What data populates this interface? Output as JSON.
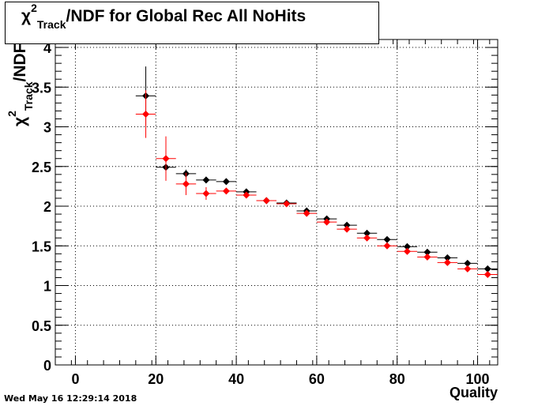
{
  "chart_data": {
    "type": "scatter",
    "title_symbol": "χ",
    "title_sup": "2",
    "title_sub": "Track",
    "title_rest": "/NDF for Global Rec All NoHits",
    "xlabel": "Quality",
    "ylabel_symbol": "χ",
    "ylabel_sup": "2",
    "ylabel_sub": "Track",
    "ylabel_rest": "/NDF",
    "xlim": [
      -5,
      105
    ],
    "ylim": [
      0,
      4.1
    ],
    "x_ticks": [
      "0",
      "20",
      "40",
      "60",
      "80",
      "100"
    ],
    "y_ticks": [
      "0",
      "0.5",
      "1",
      "1.5",
      "2",
      "2.5",
      "3",
      "3.5",
      "4"
    ],
    "grid": true,
    "bin_half_width": 2.5,
    "series": [
      {
        "color": "#000000",
        "x": [
          17.5,
          22.5,
          27.5,
          32.5,
          37.5,
          42.5,
          47.5,
          52.5,
          57.5,
          62.5,
          67.5,
          72.5,
          77.5,
          82.5,
          87.5,
          92.5,
          97.5,
          102.5
        ],
        "y": [
          3.39,
          2.49,
          2.41,
          2.33,
          2.31,
          2.18,
          2.07,
          2.04,
          1.94,
          1.84,
          1.76,
          1.66,
          1.58,
          1.49,
          1.42,
          1.35,
          1.28,
          1.21
        ],
        "yerr": [
          0.37,
          0.05,
          0.05,
          0.04,
          0.03,
          0.03,
          0.02,
          0.02,
          0.02,
          0.02,
          0.02,
          0.02,
          0.02,
          0.02,
          0.02,
          0.02,
          0.02,
          0.02
        ]
      },
      {
        "color": "#ff0000",
        "x": [
          17.5,
          22.5,
          27.5,
          32.5,
          37.5,
          42.5,
          47.5,
          52.5,
          57.5,
          62.5,
          67.5,
          72.5,
          77.5,
          82.5,
          87.5,
          92.5,
          97.5,
          102.5
        ],
        "y": [
          3.16,
          2.6,
          2.28,
          2.16,
          2.19,
          2.14,
          2.07,
          2.03,
          1.91,
          1.8,
          1.71,
          1.6,
          1.5,
          1.43,
          1.36,
          1.29,
          1.21,
          1.14
        ],
        "yerr": [
          0.3,
          0.28,
          0.14,
          0.08,
          0.04,
          0.03,
          0.02,
          0.02,
          0.02,
          0.02,
          0.02,
          0.02,
          0.02,
          0.02,
          0.02,
          0.02,
          0.02,
          0.02
        ]
      }
    ]
  },
  "footer": {
    "timestamp": "Wed May 16 12:29:14 2018"
  }
}
